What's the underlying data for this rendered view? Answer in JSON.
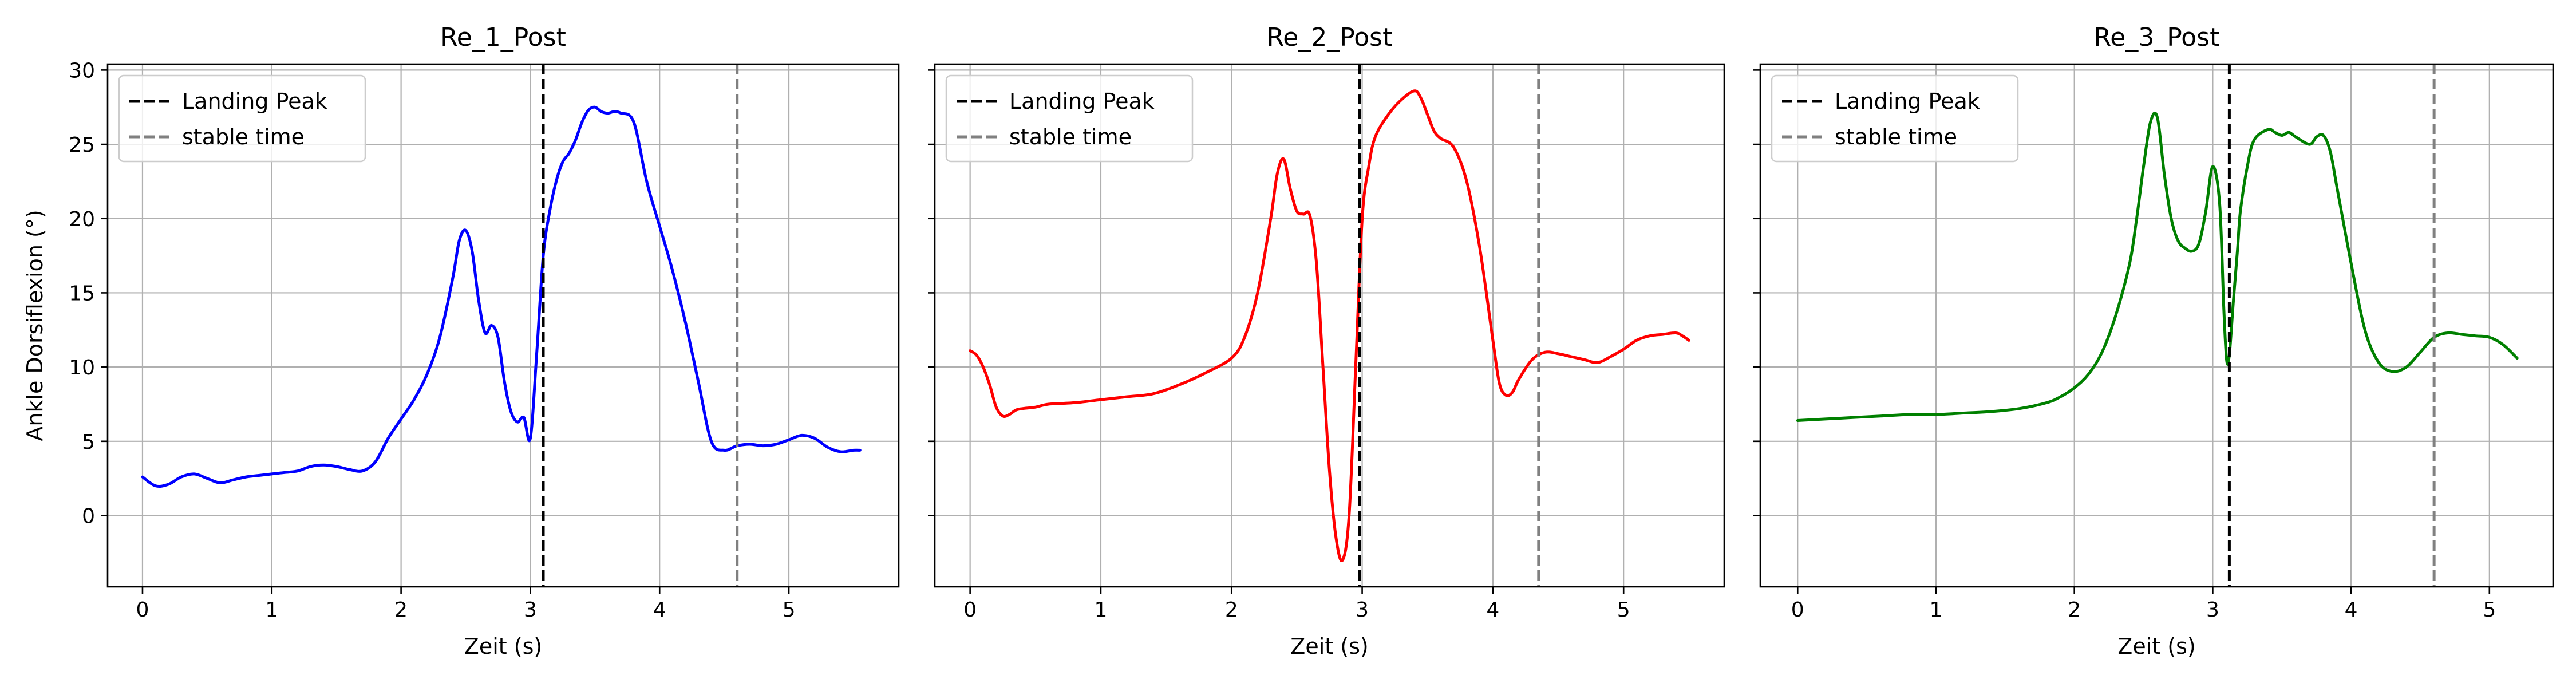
{
  "chart_data": [
    {
      "type": "line",
      "title": "Re_1_Post",
      "xlabel": "Zeit (s)",
      "ylabel": "Ankle Dorsiflexion (°)",
      "xlim": [
        -0.27,
        5.85
      ],
      "ylim": [
        -4.8,
        30.4
      ],
      "x_ticks": [
        0,
        1,
        2,
        3,
        4,
        5
      ],
      "y_ticks": [
        0,
        5,
        10,
        15,
        20,
        25,
        30
      ],
      "grid": true,
      "legend": {
        "position": "top-left",
        "entries": [
          {
            "label": "Landing Peak",
            "color": "#000000",
            "style": "dashed"
          },
          {
            "label": "stable time",
            "color": "#808080",
            "style": "dashed"
          }
        ]
      },
      "vlines": [
        {
          "name": "Landing Peak",
          "x": 3.1,
          "color": "#000000"
        },
        {
          "name": "stable time",
          "x": 4.6,
          "color": "#808080"
        }
      ],
      "series": [
        {
          "color": "#0000ff",
          "x": [
            0,
            0.1,
            0.2,
            0.3,
            0.4,
            0.5,
            0.6,
            0.7,
            0.8,
            0.9,
            1.0,
            1.1,
            1.2,
            1.3,
            1.4,
            1.5,
            1.6,
            1.7,
            1.8,
            1.9,
            2.0,
            2.1,
            2.2,
            2.3,
            2.4,
            2.45,
            2.5,
            2.55,
            2.6,
            2.65,
            2.7,
            2.75,
            2.8,
            2.85,
            2.9,
            2.95,
            3.0,
            3.05,
            3.1,
            3.15,
            3.2,
            3.25,
            3.3,
            3.35,
            3.4,
            3.45,
            3.5,
            3.55,
            3.6,
            3.65,
            3.7,
            3.8,
            3.9,
            4.0,
            4.1,
            4.2,
            4.3,
            4.4,
            4.5,
            4.6,
            4.7,
            4.8,
            4.9,
            5.0,
            5.1,
            5.2,
            5.3,
            5.4,
            5.5,
            5.55
          ],
          "y": [
            2.6,
            2.0,
            2.1,
            2.6,
            2.8,
            2.5,
            2.2,
            2.4,
            2.6,
            2.7,
            2.8,
            2.9,
            3.0,
            3.3,
            3.4,
            3.3,
            3.1,
            3.0,
            3.6,
            5.2,
            6.5,
            7.8,
            9.5,
            12.0,
            16.0,
            18.5,
            19.2,
            17.8,
            14.5,
            12.3,
            12.8,
            12.0,
            9.0,
            7.0,
            6.3,
            6.6,
            5.2,
            11.0,
            17.5,
            20.5,
            22.5,
            23.8,
            24.4,
            25.3,
            26.5,
            27.3,
            27.5,
            27.2,
            27.1,
            27.2,
            27.1,
            26.5,
            22.5,
            19.5,
            16.5,
            13.0,
            9.0,
            5.0,
            4.4,
            4.7,
            4.8,
            4.7,
            4.8,
            5.1,
            5.4,
            5.2,
            4.6,
            4.3,
            4.4,
            4.4
          ]
        }
      ]
    },
    {
      "type": "line",
      "title": "Re_2_Post",
      "xlabel": "Zeit (s)",
      "ylabel": "",
      "xlim": [
        -0.27,
        5.77
      ],
      "ylim": [
        -4.8,
        30.4
      ],
      "x_ticks": [
        0,
        1,
        2,
        3,
        4,
        5
      ],
      "y_ticks": [
        0,
        5,
        10,
        15,
        20,
        25,
        30
      ],
      "grid": true,
      "legend": {
        "position": "top-left",
        "entries": [
          {
            "label": "Landing Peak",
            "color": "#000000",
            "style": "dashed"
          },
          {
            "label": "stable time",
            "color": "#808080",
            "style": "dashed"
          }
        ]
      },
      "vlines": [
        {
          "name": "Landing Peak",
          "x": 2.98,
          "color": "#000000"
        },
        {
          "name": "stable time",
          "x": 4.35,
          "color": "#808080"
        }
      ],
      "series": [
        {
          "color": "#ff0000",
          "x": [
            0,
            0.05,
            0.1,
            0.15,
            0.2,
            0.25,
            0.3,
            0.35,
            0.4,
            0.5,
            0.6,
            0.8,
            1.0,
            1.2,
            1.4,
            1.6,
            1.8,
            2.0,
            2.1,
            2.2,
            2.3,
            2.35,
            2.4,
            2.45,
            2.5,
            2.55,
            2.6,
            2.65,
            2.7,
            2.75,
            2.8,
            2.85,
            2.9,
            2.95,
            3.0,
            3.05,
            3.1,
            3.2,
            3.3,
            3.4,
            3.45,
            3.5,
            3.55,
            3.6,
            3.7,
            3.8,
            3.9,
            4.0,
            4.05,
            4.1,
            4.15,
            4.2,
            4.3,
            4.4,
            4.5,
            4.6,
            4.7,
            4.8,
            4.9,
            5.0,
            5.1,
            5.2,
            5.3,
            5.4,
            5.45,
            5.5
          ],
          "y": [
            11.1,
            10.8,
            10.0,
            8.8,
            7.3,
            6.7,
            6.8,
            7.1,
            7.2,
            7.3,
            7.5,
            7.6,
            7.8,
            8.0,
            8.2,
            8.8,
            9.6,
            10.6,
            12.0,
            15.0,
            20.0,
            23.0,
            24.0,
            22.0,
            20.5,
            20.3,
            20.2,
            17.0,
            10.0,
            3.0,
            -1.5,
            -3.0,
            0.0,
            10.0,
            20.0,
            23.5,
            25.5,
            27.0,
            28.0,
            28.6,
            28.1,
            27.0,
            25.9,
            25.4,
            24.8,
            22.5,
            18.0,
            11.8,
            8.9,
            8.1,
            8.3,
            9.2,
            10.5,
            11.0,
            10.9,
            10.7,
            10.5,
            10.3,
            10.7,
            11.2,
            11.8,
            12.1,
            12.2,
            12.3,
            12.1,
            11.8
          ]
        }
      ]
    },
    {
      "type": "line",
      "title": "Re_3_Post",
      "xlabel": "Zeit (s)",
      "ylabel": "",
      "xlim": [
        -0.27,
        5.46
      ],
      "ylim": [
        -4.8,
        30.4
      ],
      "x_ticks": [
        0,
        1,
        2,
        3,
        4,
        5
      ],
      "y_ticks": [
        0,
        5,
        10,
        15,
        20,
        25,
        30
      ],
      "grid": true,
      "legend": {
        "position": "top-left",
        "entries": [
          {
            "label": "Landing Peak",
            "color": "#000000",
            "style": "dashed"
          },
          {
            "label": "stable time",
            "color": "#808080",
            "style": "dashed"
          }
        ]
      },
      "vlines": [
        {
          "name": "Landing Peak",
          "x": 3.12,
          "color": "#000000"
        },
        {
          "name": "stable time",
          "x": 4.6,
          "color": "#808080"
        }
      ],
      "series": [
        {
          "color": "#008000",
          "x": [
            0,
            0.2,
            0.4,
            0.6,
            0.8,
            1.0,
            1.2,
            1.4,
            1.6,
            1.8,
            1.9,
            2.0,
            2.1,
            2.2,
            2.3,
            2.4,
            2.45,
            2.5,
            2.55,
            2.6,
            2.65,
            2.7,
            2.75,
            2.8,
            2.85,
            2.9,
            2.95,
            3.0,
            3.05,
            3.08,
            3.1,
            3.12,
            3.15,
            3.18,
            3.2,
            3.25,
            3.3,
            3.4,
            3.45,
            3.5,
            3.55,
            3.6,
            3.7,
            3.75,
            3.8,
            3.85,
            3.9,
            4.0,
            4.1,
            4.2,
            4.3,
            4.4,
            4.5,
            4.6,
            4.7,
            4.8,
            4.9,
            5.0,
            5.1,
            5.2
          ],
          "y": [
            6.4,
            6.5,
            6.6,
            6.7,
            6.8,
            6.8,
            6.9,
            7.0,
            7.2,
            7.6,
            8.0,
            8.6,
            9.5,
            11.0,
            13.5,
            17.0,
            20.0,
            23.5,
            26.5,
            26.8,
            23.0,
            20.0,
            18.5,
            18.0,
            17.8,
            18.3,
            20.5,
            23.5,
            21.0,
            14.0,
            10.5,
            10.8,
            14.5,
            18.0,
            20.5,
            23.5,
            25.3,
            26.0,
            25.8,
            25.6,
            25.8,
            25.5,
            25.0,
            25.5,
            25.6,
            24.5,
            22.0,
            17.0,
            12.5,
            10.3,
            9.7,
            10.0,
            11.0,
            12.0,
            12.3,
            12.2,
            12.1,
            12.0,
            11.5,
            10.6
          ]
        }
      ]
    }
  ]
}
